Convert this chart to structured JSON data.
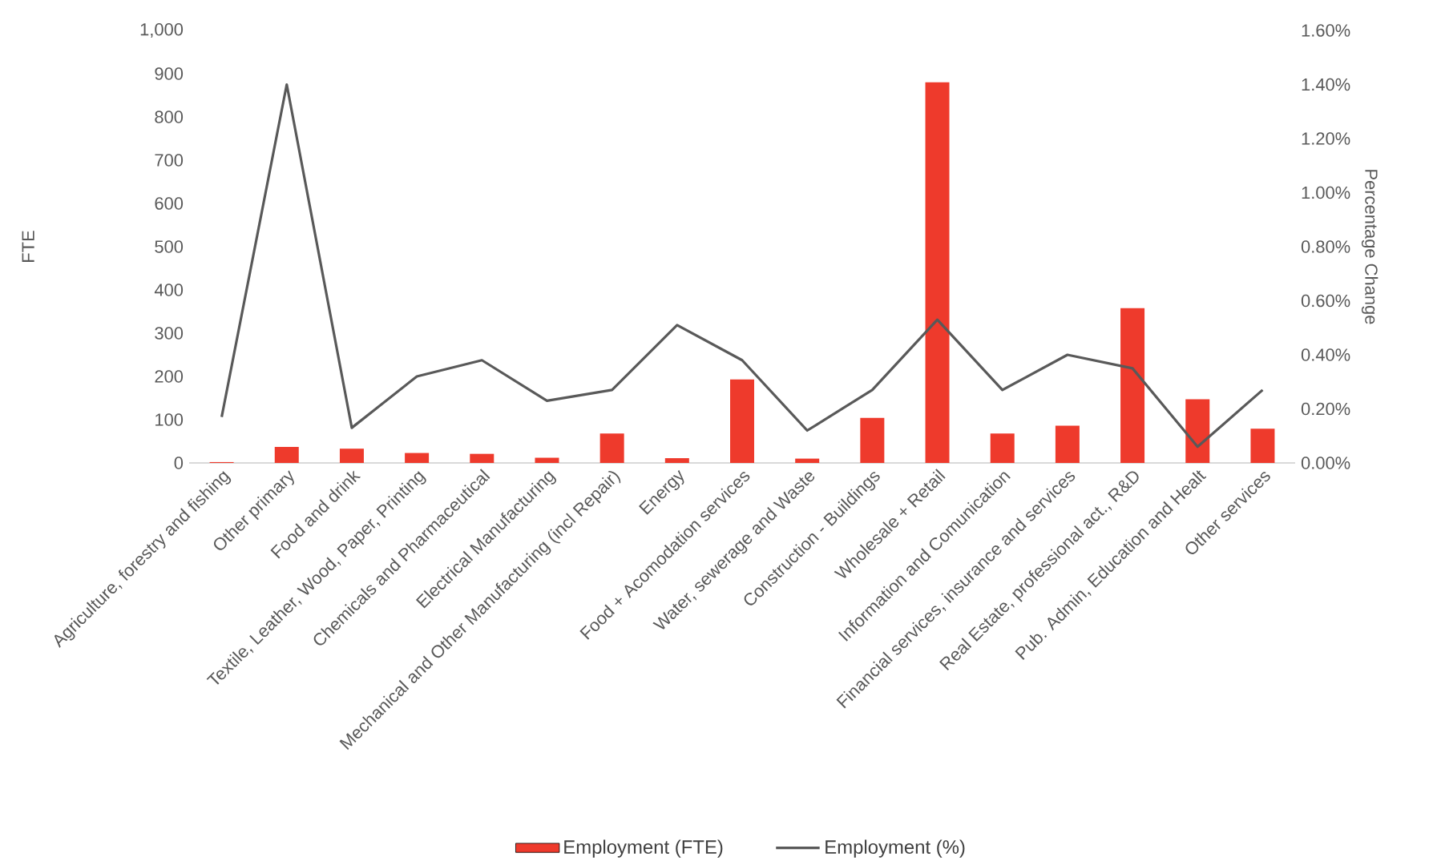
{
  "chart_data": {
    "type": "bar",
    "categories": [
      "Agriculture, forestry and fishing",
      "Other primary",
      "Food and drink",
      "Textile, Leather, Wood, Paper, Printing",
      "Chemicals and Pharmaceutical",
      "Electrical Manufacturing",
      "Mechanical and Other Manufacturing (incl Repair)",
      "Energy",
      "Food + Acomodation services",
      "Water, sewerage and Waste",
      "Construction - Buildings",
      "Wholesale + Retail",
      "Information and Comunication",
      "Financial services, insurance and services",
      "Real Estate, professional act., R&D",
      "Pub. Admin, Education and Healt",
      "Other services"
    ],
    "series": [
      {
        "name": "Employment (FTE)",
        "color": "#ee3a2c",
        "values": [
          2,
          37,
          33,
          23,
          21,
          12,
          68,
          11,
          193,
          10,
          104,
          880,
          68,
          86,
          358,
          147,
          79
        ]
      },
      {
        "name": "Employment (%)",
        "type": "line",
        "axis": "y2",
        "color": "#595959",
        "values": [
          0.17,
          1.4,
          0.13,
          0.32,
          0.38,
          0.23,
          0.27,
          0.51,
          0.38,
          0.12,
          0.27,
          0.53,
          0.27,
          0.4,
          0.35,
          0.06,
          0.27
        ]
      }
    ],
    "ylabel": "FTE",
    "y2label": "Percentage Change",
    "ylim": [
      0,
      1000
    ],
    "yticks": [
      0,
      100,
      200,
      300,
      400,
      500,
      600,
      700,
      800,
      900,
      {
        "value": 1000,
        "label": "1,000"
      }
    ],
    "y2lim": [
      0,
      1.6
    ],
    "y2ticks": [
      {
        "value": 0,
        "label": "0.00%"
      },
      {
        "value": 0.2,
        "label": "0.20%"
      },
      {
        "value": 0.4,
        "label": "0.40%"
      },
      {
        "value": 0.6,
        "label": "0.60%"
      },
      {
        "value": 0.8,
        "label": "0.80%"
      },
      {
        "value": 1.0,
        "label": "1.00%"
      },
      {
        "value": 1.2,
        "label": "1.20%"
      },
      {
        "value": 1.4,
        "label": "1.40%"
      },
      {
        "value": 1.6,
        "label": "1.60%"
      }
    ],
    "legend": "bottom"
  }
}
